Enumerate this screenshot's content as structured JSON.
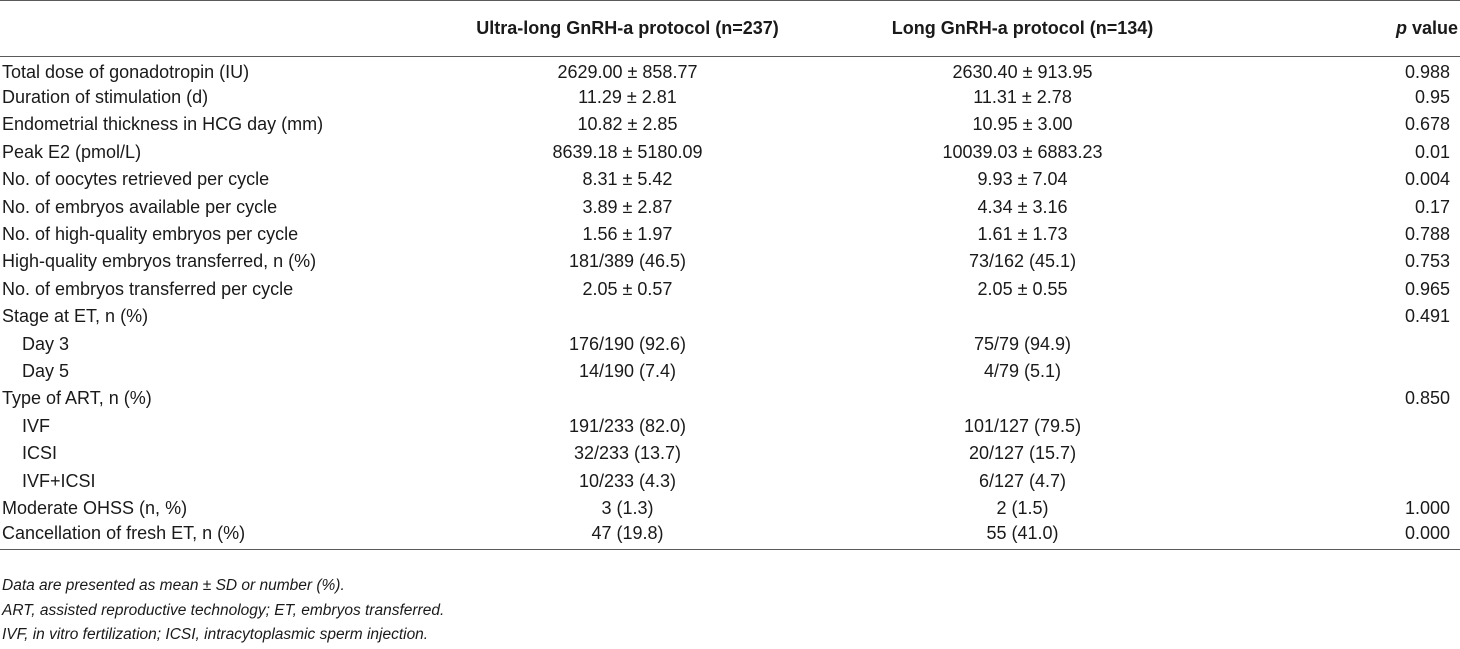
{
  "header": {
    "col1": "",
    "col2": "Ultra-long GnRH-a protocol (n=237)",
    "col3": "Long GnRH-a protocol (n=134)",
    "col4_italic": "p",
    "col4_rest": " value"
  },
  "rows": [
    {
      "label": "Total dose of gonadotropin (IU)",
      "ultra": "2629.00 ± 858.77",
      "long": "2630.40 ± 913.95",
      "p": "0.988"
    },
    {
      "label": "Duration of stimulation (d)",
      "ultra": "11.29 ± 2.81",
      "long": "11.31 ± 2.78",
      "p": "0.95"
    },
    {
      "label": "Endometrial thickness in HCG day (mm)",
      "ultra": "10.82 ± 2.85",
      "long": "10.95 ± 3.00",
      "p": "0.678"
    },
    {
      "label": "Peak E2 (pmol/L)",
      "ultra": "8639.18 ± 5180.09",
      "long": "10039.03 ± 6883.23",
      "p": "0.01"
    },
    {
      "label": "No. of oocytes retrieved per cycle",
      "ultra": "8.31 ± 5.42",
      "long": "9.93 ± 7.04",
      "p": "0.004"
    },
    {
      "label": "No. of embryos available per cycle",
      "ultra": "3.89 ± 2.87",
      "long": "4.34 ± 3.16",
      "p": "0.17"
    },
    {
      "label": "No. of high-quality embryos per cycle",
      "ultra": "1.56 ± 1.97",
      "long": "1.61 ± 1.73",
      "p": "0.788"
    },
    {
      "label": "High-quality embryos transferred, n (%)",
      "ultra": "181/389 (46.5)",
      "long": "73/162 (45.1)",
      "p": "0.753"
    },
    {
      "label": "No. of embryos transferred per cycle",
      "ultra": "2.05 ± 0.57",
      "long": "2.05 ± 0.55",
      "p": "0.965"
    },
    {
      "label": "Stage at ET, n (%)",
      "ultra": "",
      "long": "",
      "p": "0.491"
    },
    {
      "label": "Day 3",
      "ultra": "176/190 (92.6)",
      "long": "75/79 (94.9)",
      "p": ""
    },
    {
      "label": "Day 5",
      "ultra": "14/190 (7.4)",
      "long": "4/79 (5.1)",
      "p": ""
    },
    {
      "label": "Type of ART, n (%)",
      "ultra": "",
      "long": "",
      "p": "0.850"
    },
    {
      "label": "IVF",
      "ultra": "191/233 (82.0)",
      "long": "101/127 (79.5)",
      "p": ""
    },
    {
      "label": "ICSI",
      "ultra": "32/233 (13.7)",
      "long": "20/127 (15.7)",
      "p": ""
    },
    {
      "label": "IVF+ICSI",
      "ultra": "10/233 (4.3)",
      "long": "6/127 (4.7)",
      "p": ""
    },
    {
      "label": "Moderate OHSS (n, %)",
      "ultra": "3 (1.3)",
      "long": "2 (1.5)",
      "p": "1.000"
    },
    {
      "label": "Cancellation of fresh ET, n (%)",
      "ultra": "47 (19.8)",
      "long": "55 (41.0)",
      "p": "0.000"
    }
  ],
  "notes": [
    "Data are presented as mean ± SD or number (%).",
    "ART, assisted reproductive technology; ET, embryos transferred.",
    "IVF, in vitro fertilization; ICSI, intracytoplasmic sperm injection."
  ]
}
